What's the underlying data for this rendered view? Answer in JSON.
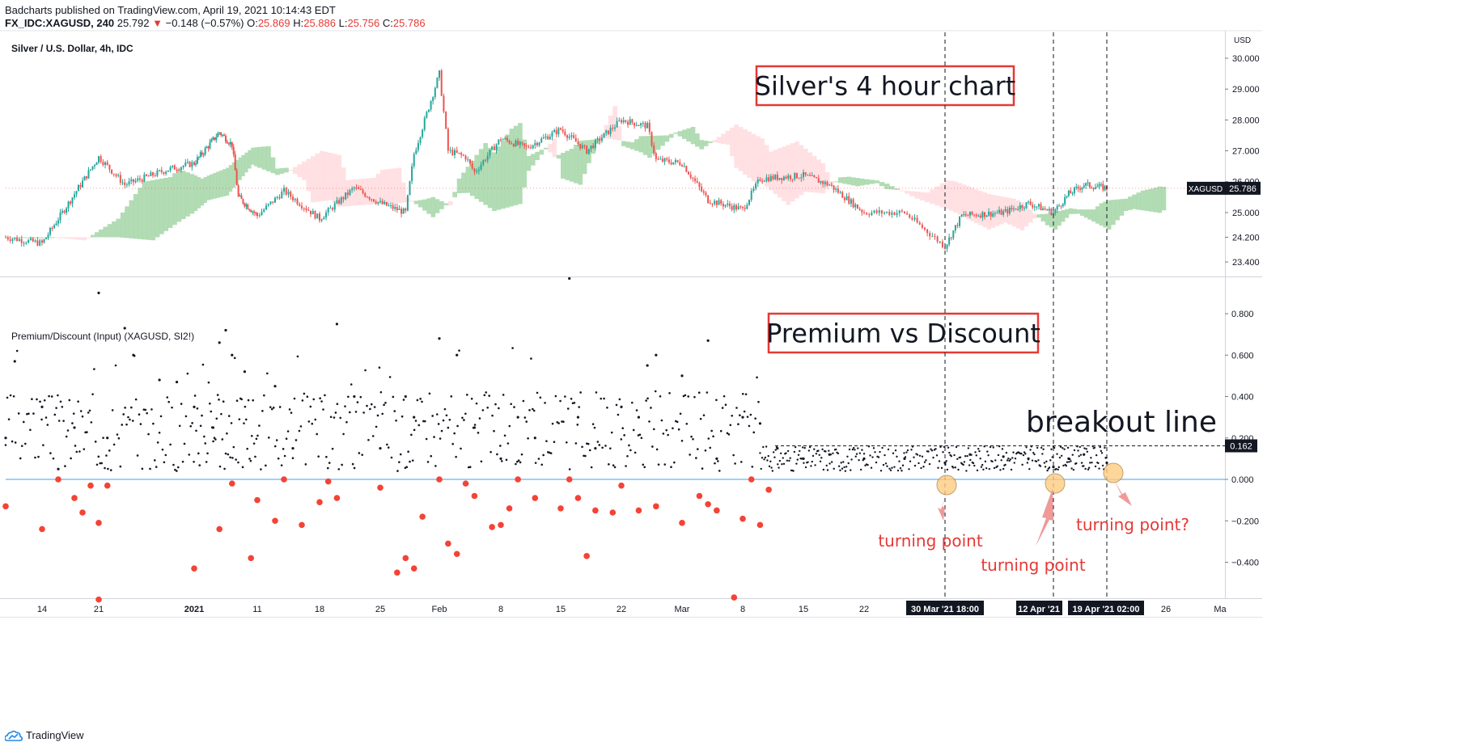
{
  "header": {
    "published_line": "Badcharts published on TradingView.com, April 19, 2021 10:14:43 EDT",
    "symbol": "FX_IDC:XAGUSD, 240",
    "last": "25.792",
    "arrow": "▼",
    "change": "−0.148 (−0.57%)",
    "o_label": "O:",
    "o_val": "25.869",
    "h_label": "H:",
    "h_val": "25.886",
    "l_label": "L:",
    "l_val": "25.756",
    "c_label": "C:",
    "c_val": "25.786"
  },
  "price_pane": {
    "title": "Silver / U.S. Dollar, 4h, IDC",
    "currency": "USD",
    "symbol_tag": "XAGUSD",
    "last_price_tag": "25.786",
    "annotation": "Silver's 4 hour chart"
  },
  "indicator_pane": {
    "title": "Premium/Discount (Input) (XAGUSD, SI2!)",
    "annotation": "Premium vs Discount",
    "breakout_label": "breakout line",
    "breakout_value_tag": "0.162",
    "turning_labels": [
      "turning point",
      "turning point",
      "turning point?"
    ]
  },
  "time_axis": {
    "highlight_labels": [
      "30 Mar '21   18:00",
      "12 Apr '21",
      "19 Apr '21   02:00"
    ]
  },
  "footer": {
    "brand": "TradingView"
  },
  "colors": {
    "up": "#26a69a",
    "down": "#ef5350",
    "cloud_bull": "#a5d6a7",
    "cloud_bear": "#ffcdd2",
    "zero_line": "#64b5f6",
    "discount_dot": "#f44336",
    "annotation_box": "#e53935",
    "turning_text": "#e53935",
    "turning_circle": "#ffcc80"
  },
  "chart_data": [
    {
      "type": "candlestick",
      "title": "Silver / U.S. Dollar, 4h, IDC",
      "yticks": [
        23.4,
        24.2,
        25.0,
        26.0,
        27.0,
        28.0,
        29.0,
        30.0,
        31.0
      ],
      "ylim": [
        23.1,
        31.1
      ],
      "xticks": [
        "14",
        "21",
        "2021",
        "11",
        "18",
        "25",
        "Feb",
        "8",
        "15",
        "22",
        "Mar",
        "8",
        "15",
        "22",
        "26",
        "Ma"
      ],
      "last_price": 25.786,
      "close_path": [
        [
          "Dec 10",
          24.2
        ],
        [
          "Dec 14",
          24.0
        ],
        [
          "Dec 17",
          25.2
        ],
        [
          "Dec 21",
          26.8
        ],
        [
          "Dec 24",
          25.9
        ],
        [
          "Dec 29",
          26.4
        ],
        [
          "Jan 1",
          26.6
        ],
        [
          "Jan 5",
          27.6
        ],
        [
          "Jan 7",
          27.2
        ],
        [
          "Jan 8",
          25.5
        ],
        [
          "Jan 11",
          24.9
        ],
        [
          "Jan 14",
          25.7
        ],
        [
          "Jan 18",
          24.8
        ],
        [
          "Jan 22",
          25.8
        ],
        [
          "Jan 25",
          25.3
        ],
        [
          "Jan 28",
          25.0
        ],
        [
          "Jan 29",
          26.9
        ],
        [
          "Feb 1",
          29.5
        ],
        [
          "Feb 2",
          27.0
        ],
        [
          "Feb 4",
          26.8
        ],
        [
          "Feb 5",
          26.3
        ],
        [
          "Feb 8",
          27.4
        ],
        [
          "Feb 11",
          27.1
        ],
        [
          "Feb 15",
          27.7
        ],
        [
          "Feb 18",
          27.0
        ],
        [
          "Feb 22",
          28.0
        ],
        [
          "Feb 25",
          27.8
        ],
        [
          "Feb 26",
          26.7
        ],
        [
          "Mar 1",
          26.6
        ],
        [
          "Mar 4",
          25.4
        ],
        [
          "Mar 8",
          25.1
        ],
        [
          "Mar 10",
          26.1
        ],
        [
          "Mar 15",
          26.2
        ],
        [
          "Mar 18",
          25.9
        ],
        [
          "Mar 22",
          25.0
        ],
        [
          "Mar 26",
          25.0
        ],
        [
          "Mar 30",
          23.9
        ],
        [
          "Apr 1",
          24.9
        ],
        [
          "Apr 6",
          25.0
        ],
        [
          "Apr 9",
          25.3
        ],
        [
          "Apr 12",
          25.0
        ],
        [
          "Apr 14",
          25.6
        ],
        [
          "Apr 16",
          25.9
        ],
        [
          "Apr 19",
          25.79
        ]
      ]
    },
    {
      "type": "scatter",
      "title": "Premium/Discount (Input) (XAGUSD, SI2!)",
      "yticks": [
        -0.4,
        -0.2,
        0.0,
        0.2,
        0.4,
        0.6,
        0.8
      ],
      "ylim": [
        -0.58,
        1.0
      ],
      "zero_line": 0.0,
      "breakout_line": 0.162,
      "series": [
        {
          "points": [
            [
              "Dec 10",
              0.2
            ],
            [
              "Dec 11",
              0.57
            ],
            [
              "Dec 14",
              0.35
            ],
            [
              "Dec 16",
              0.05
            ],
            [
              "Dec 18",
              0.25
            ],
            [
              "Dec 21",
              0.9
            ],
            [
              "Dec 22",
              0.2
            ],
            [
              "Dec 24",
              0.73
            ],
            [
              "Dec 25",
              0.6
            ],
            [
              "Dec 28",
              0.48
            ],
            [
              "Dec 30",
              0.47
            ],
            [
              "Jan 1",
              0.35
            ],
            [
              "Jan 4",
              0.25
            ],
            [
              "Jan 5",
              0.66
            ],
            [
              "Jan 6",
              0.72
            ],
            [
              "Jan 7",
              0.6
            ],
            [
              "Jan 9",
              0.52
            ],
            [
              "Jan 13",
              0.45
            ],
            [
              "Jan 15",
              0.15
            ],
            [
              "Jan 20",
              0.75
            ],
            [
              "Jan 22",
              0.4
            ],
            [
              "Jan 25",
              0.15
            ],
            [
              "Jan 28",
              0.4
            ],
            [
              "Jan 29",
              0.3
            ],
            [
              "Feb 1",
              0.68
            ],
            [
              "Feb 3",
              0.6
            ],
            [
              "Feb 5",
              0.25
            ],
            [
              "Feb 8",
              0.1
            ],
            [
              "Feb 10",
              0.3
            ],
            [
              "Feb 12",
              0.2
            ],
            [
              "Feb 16",
              0.97
            ],
            [
              "Feb 17",
              0.3
            ],
            [
              "Feb 19",
              0.15
            ],
            [
              "Feb 22",
              0.35
            ],
            [
              "Feb 24",
              0.3
            ],
            [
              "Feb 25",
              0.55
            ],
            [
              "Feb 26",
              0.6
            ],
            [
              "Mar 1",
              0.5
            ],
            [
              "Mar 4",
              0.67
            ],
            [
              "Mar 5",
              0.1
            ],
            [
              "Mar 8",
              0.3
            ],
            [
              "Mar 10",
              0.27
            ],
            [
              "Mar 12",
              0.15
            ],
            [
              "Mar 15",
              0.1
            ],
            [
              "Mar 18",
              0.12
            ],
            [
              "Mar 22",
              0.1
            ],
            [
              "Mar 26",
              0.1
            ],
            [
              "Mar 30",
              0.08
            ],
            [
              "Apr 2",
              0.12
            ],
            [
              "Apr 6",
              0.11
            ],
            [
              "Apr 9",
              0.1
            ],
            [
              "Apr 12",
              0.06
            ],
            [
              "Apr 14",
              0.1
            ],
            [
              "Apr 16",
              0.12
            ],
            [
              "Apr 19",
              0.08
            ]
          ]
        },
        {
          "points": [
            [
              "Dec 10",
              -0.13
            ],
            [
              "Dec 14",
              -0.24
            ],
            [
              "Dec 16",
              0.0
            ],
            [
              "Dec 18",
              -0.09
            ],
            [
              "Dec 19",
              -0.16
            ],
            [
              "Dec 20",
              -0.03
            ],
            [
              "Dec 21",
              -0.21
            ],
            [
              "Dec 21",
              -0.58
            ],
            [
              "Dec 22",
              -0.03
            ],
            [
              "Jan 1",
              -0.43
            ],
            [
              "Jan 5",
              -0.24
            ],
            [
              "Jan 7",
              -0.02
            ],
            [
              "Jan 10",
              -0.38
            ],
            [
              "Jan 11",
              -0.1
            ],
            [
              "Jan 13",
              -0.2
            ],
            [
              "Jan 14",
              0.0
            ],
            [
              "Jan 16",
              -0.22
            ],
            [
              "Jan 18",
              -0.11
            ],
            [
              "Jan 19",
              -0.01
            ],
            [
              "Jan 20",
              -0.09
            ],
            [
              "Jan 25",
              -0.04
            ],
            [
              "Jan 27",
              -0.45
            ],
            [
              "Jan 28",
              -0.38
            ],
            [
              "Jan 29",
              -0.43
            ],
            [
              "Jan 30",
              -0.18
            ],
            [
              "Feb 1",
              0.0
            ],
            [
              "Feb 2",
              -0.31
            ],
            [
              "Feb 3",
              -0.36
            ],
            [
              "Feb 4",
              -0.02
            ],
            [
              "Feb 5",
              -0.08
            ],
            [
              "Feb 7",
              -0.23
            ],
            [
              "Feb 8",
              -0.22
            ],
            [
              "Feb 9",
              -0.14
            ],
            [
              "Feb 10",
              0.0
            ],
            [
              "Feb 12",
              -0.09
            ],
            [
              "Feb 15",
              -0.14
            ],
            [
              "Feb 16",
              0.0
            ],
            [
              "Feb 17",
              -0.09
            ],
            [
              "Feb 18",
              -0.37
            ],
            [
              "Feb 19",
              -0.15
            ],
            [
              "Feb 21",
              -0.16
            ],
            [
              "Feb 22",
              -0.03
            ],
            [
              "Feb 24",
              -0.15
            ],
            [
              "Feb 26",
              -0.13
            ],
            [
              "Mar 1",
              -0.21
            ],
            [
              "Mar 3",
              -0.08
            ],
            [
              "Mar 4",
              -0.12
            ],
            [
              "Mar 5",
              -0.15
            ],
            [
              "Mar 7",
              -0.57
            ],
            [
              "Mar 8",
              -0.19
            ],
            [
              "Mar 9",
              0.0
            ],
            [
              "Mar 10",
              -0.22
            ],
            [
              "Mar 11",
              -0.05
            ]
          ]
        }
      ]
    }
  ]
}
